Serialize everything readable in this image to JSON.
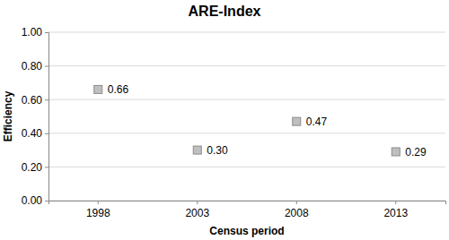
{
  "chart_data": {
    "type": "scatter",
    "title": "ARE-Index",
    "x_label": "Census period",
    "y_label": "Efficiency",
    "categories": [
      "1998",
      "2003",
      "2008",
      "2013"
    ],
    "values": [
      0.66,
      0.3,
      0.47,
      0.29
    ],
    "value_labels": [
      "0.66",
      "0.30",
      "0.47",
      "0.29"
    ],
    "color": "#bfbfbf",
    "marker": "square",
    "line_style": "none",
    "data_labels": true,
    "grid": true,
    "ylim": [
      0,
      1
    ],
    "yticks": [
      {
        "value": 0,
        "label": "0.00"
      },
      {
        "value": 0.2,
        "label": "0.20"
      },
      {
        "value": 0.4,
        "label": "0.40"
      },
      {
        "value": 0.6,
        "label": "0.60"
      },
      {
        "value": 0.8,
        "label": "0.80"
      },
      {
        "value": 1,
        "label": "1.00"
      }
    ]
  }
}
